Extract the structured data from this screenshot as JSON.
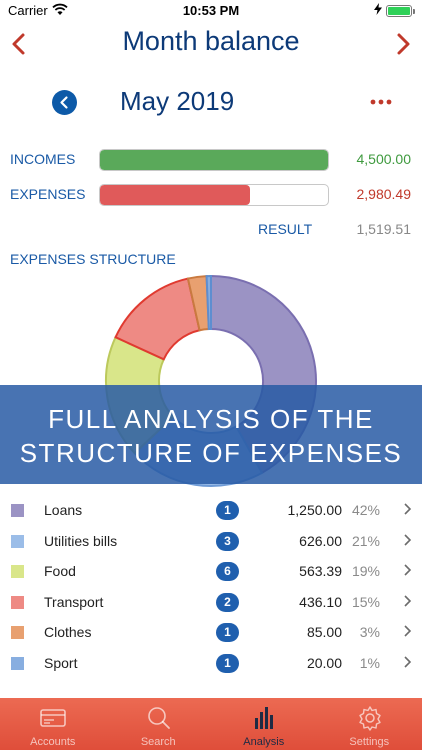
{
  "status_bar": {
    "carrier": "Carrier",
    "time": "10:53 PM"
  },
  "nav": {
    "title": "Month balance"
  },
  "period": {
    "month": "May 2019"
  },
  "summary": {
    "incomes_label": "INCOMES",
    "incomes_value": "4,500.00",
    "incomes_fill": 1.0,
    "expenses_label": "EXPENSES",
    "expenses_value": "2,980.49",
    "expenses_fill": 0.66,
    "result_label": "RESULT",
    "result_value": "1,519.51"
  },
  "section_title": "EXPENSES STRUCTURE",
  "banner": {
    "line1": "FULL ANALYSIS OF THE",
    "line2": "STRUCTURE OF EXPENSES"
  },
  "categories": [
    {
      "label": "Loans",
      "count": "1",
      "amount": "1,250.00",
      "percent": "42%",
      "color": "#9b93c4",
      "value": 1250.0
    },
    {
      "label": "Utilities bills",
      "count": "3",
      "amount": "626.00",
      "percent": "21%",
      "color": "#9bbde8",
      "value": 626.0
    },
    {
      "label": "Food",
      "count": "6",
      "amount": "563.39",
      "percent": "19%",
      "color": "#d9e68a",
      "value": 563.39
    },
    {
      "label": "Transport",
      "count": "2",
      "amount": "436.10",
      "percent": "15%",
      "color": "#ee8a84",
      "value": 436.1
    },
    {
      "label": "Clothes",
      "count": "1",
      "amount": "85.00",
      "percent": "3%",
      "color": "#e8a070",
      "value": 85.0
    },
    {
      "label": "Sport",
      "count": "1",
      "amount": "20.00",
      "percent": "1%",
      "color": "#88aee0",
      "value": 20.0
    }
  ],
  "chart_data": {
    "type": "pie",
    "categories": [
      "Loans",
      "Utilities bills",
      "Food",
      "Transport",
      "Clothes",
      "Sport"
    ],
    "values": [
      1250.0,
      626.0,
      563.39,
      436.1,
      85.0,
      20.0
    ],
    "colors": [
      "#9b93c4",
      "#9bbde8",
      "#d9e68a",
      "#ee8a84",
      "#e8a070",
      "#88aee0"
    ],
    "title": "EXPENSES STRUCTURE"
  },
  "tabs": [
    {
      "label": "Accounts",
      "icon": "accounts-card-icon",
      "active": false
    },
    {
      "label": "Search",
      "icon": "search-icon",
      "active": false
    },
    {
      "label": "Analysis",
      "icon": "analysis-bars-icon",
      "active": true
    },
    {
      "label": "Settings",
      "icon": "gear-icon",
      "active": false
    }
  ],
  "colors": {
    "accent_red": "#c0392b",
    "title_blue": "#0d3a78",
    "label_blue": "#1a5aa6",
    "income_green": "#4caf50",
    "expense_red": "#e05a5a",
    "tab_bar": "#e65a44"
  }
}
